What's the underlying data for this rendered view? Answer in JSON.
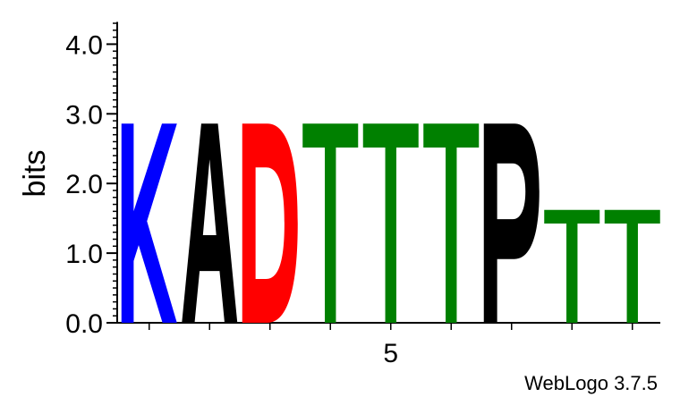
{
  "chart_data": {
    "type": "sequence-logo",
    "ylabel": "bits",
    "ylim": [
      0,
      4.32
    ],
    "y_ticks": [
      "0.0",
      "1.0",
      "2.0",
      "3.0",
      "4.0"
    ],
    "x_tick_labels": [
      {
        "position": 5,
        "label": "5"
      }
    ],
    "footer": "WebLogo 3.7.5",
    "positions": [
      {
        "position": 1,
        "letter": "K",
        "bits": 2.86,
        "color": "#0000ff"
      },
      {
        "position": 2,
        "letter": "A",
        "bits": 2.86,
        "color": "#000000"
      },
      {
        "position": 3,
        "letter": "D",
        "bits": 2.86,
        "color": "#ff0000"
      },
      {
        "position": 4,
        "letter": "T",
        "bits": 2.86,
        "color": "#008000"
      },
      {
        "position": 5,
        "letter": "T",
        "bits": 2.86,
        "color": "#008000"
      },
      {
        "position": 6,
        "letter": "T",
        "bits": 2.86,
        "color": "#008000"
      },
      {
        "position": 7,
        "letter": "P",
        "bits": 2.86,
        "color": "#000000"
      },
      {
        "position": 8,
        "letter": "T",
        "bits": 1.62,
        "color": "#008000"
      },
      {
        "position": 9,
        "letter": "T",
        "bits": 1.62,
        "color": "#008000"
      }
    ]
  }
}
